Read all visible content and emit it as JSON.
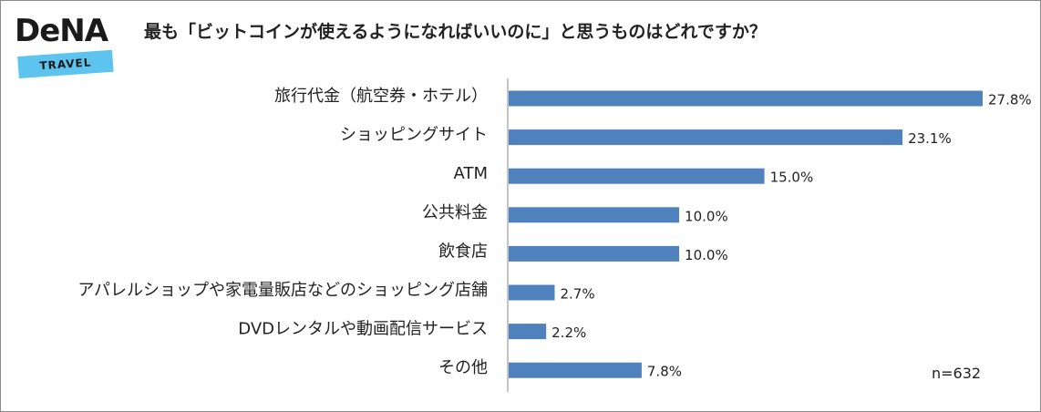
{
  "logo": {
    "brand": "DeNA",
    "sub": "TRAVEL"
  },
  "colors": {
    "bar": "#4f81bd",
    "axis": "#888888",
    "logo_banner": "#5cc4ee"
  },
  "note": "n=632",
  "chart_data": {
    "type": "bar",
    "orientation": "horizontal",
    "title": "最も「ビットコインが使えるようになればいいのに」と思うものはどれですか？",
    "xlabel": "",
    "ylabel": "",
    "grid": false,
    "legend": "none",
    "xlim": [
      0,
      27.8
    ],
    "value_suffix": "%",
    "categories": [
      "旅行代金（航空券・ホテル）",
      "ショッピングサイト",
      "ATM",
      "公共料金",
      "飲食店",
      "アパレルショップや家電量販店などのショッピング店舗",
      "DVDレンタルや動画配信サービス",
      "その他"
    ],
    "values": [
      27.8,
      23.1,
      15.0,
      10.0,
      10.0,
      2.7,
      2.2,
      7.8
    ],
    "value_labels": [
      "27.8%",
      "23.1%",
      "15.0%",
      "10.0%",
      "10.0%",
      "2.7%",
      "2.2%",
      "7.8%"
    ]
  }
}
